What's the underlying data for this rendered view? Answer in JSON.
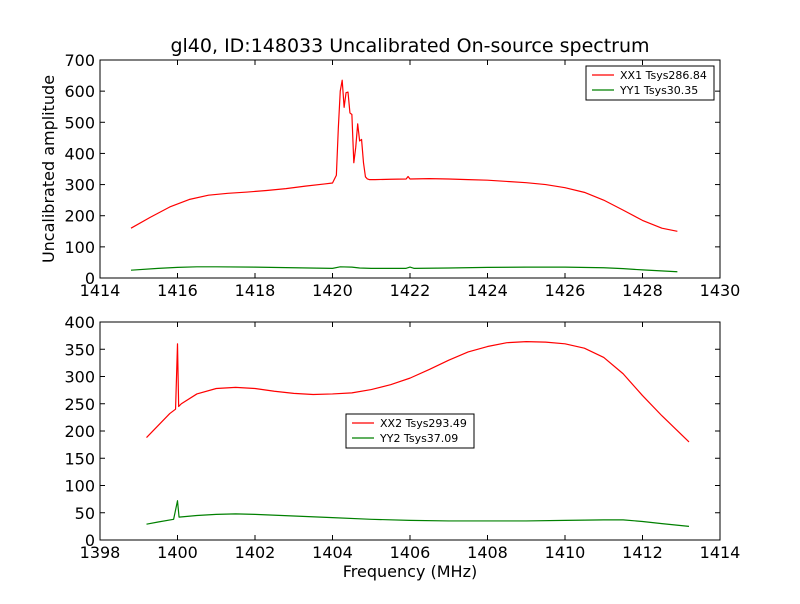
{
  "chart_data": [
    {
      "type": "line",
      "title": "gl40, ID:148033 Uncalibrated On-source spectrum",
      "xlabel": "",
      "ylabel": "Uncalibrated amplitude",
      "xlim": [
        1414,
        1430
      ],
      "ylim": [
        0,
        700
      ],
      "xticks": [
        1414,
        1416,
        1418,
        1420,
        1422,
        1424,
        1426,
        1428,
        1430
      ],
      "yticks": [
        0,
        100,
        200,
        300,
        400,
        500,
        600,
        700
      ],
      "legend_position": "top-right",
      "series": [
        {
          "name": "XX1 Tsys286.84",
          "color": "#ff0000",
          "x": [
            1414.8,
            1415.3,
            1415.8,
            1416.3,
            1416.8,
            1417.3,
            1417.8,
            1418.3,
            1418.8,
            1419.3,
            1419.8,
            1420.0,
            1420.1,
            1420.15,
            1420.2,
            1420.25,
            1420.3,
            1420.35,
            1420.4,
            1420.45,
            1420.5,
            1420.55,
            1420.6,
            1420.65,
            1420.7,
            1420.75,
            1420.8,
            1420.85,
            1420.9,
            1420.95,
            1421.0,
            1421.1,
            1421.5,
            1421.9,
            1421.95,
            1422.0,
            1422.5,
            1423.0,
            1423.5,
            1424.0,
            1424.5,
            1425.0,
            1425.5,
            1426.0,
            1426.5,
            1427.0,
            1427.5,
            1428.0,
            1428.5,
            1428.9
          ],
          "y": [
            160,
            195,
            228,
            252,
            266,
            272,
            276,
            281,
            287,
            295,
            302,
            305,
            330,
            480,
            600,
            635,
            548,
            595,
            597,
            530,
            525,
            370,
            420,
            495,
            440,
            445,
            370,
            325,
            318,
            316,
            316,
            316,
            317,
            318,
            326,
            318,
            319,
            318,
            316,
            314,
            310,
            306,
            300,
            290,
            275,
            250,
            218,
            185,
            160,
            150
          ]
        },
        {
          "name": "YY1 Tsys30.35",
          "color": "#008000",
          "x": [
            1414.8,
            1415.5,
            1416.0,
            1416.5,
            1417.0,
            1418.0,
            1419.0,
            1420.0,
            1420.2,
            1420.5,
            1420.7,
            1421.0,
            1421.5,
            1421.9,
            1422.0,
            1422.1,
            1423.0,
            1424.0,
            1425.0,
            1426.0,
            1427.0,
            1427.5,
            1428.0,
            1428.9
          ],
          "y": [
            25,
            31,
            34,
            36,
            36,
            35,
            33,
            31,
            36,
            35,
            32,
            31,
            31,
            31,
            35,
            31,
            32,
            34,
            35,
            35,
            33,
            30,
            26,
            20
          ]
        }
      ]
    },
    {
      "type": "line",
      "title": "",
      "xlabel": "Frequency (MHz)",
      "ylabel": "",
      "xlim": [
        1398,
        1414
      ],
      "ylim": [
        0,
        400
      ],
      "xticks": [
        1398,
        1400,
        1402,
        1404,
        1406,
        1408,
        1410,
        1412,
        1414
      ],
      "yticks": [
        0,
        50,
        100,
        150,
        200,
        250,
        300,
        350,
        400
      ],
      "legend_position": "center",
      "series": [
        {
          "name": "XX2 Tsys293.49",
          "color": "#ff0000",
          "x": [
            1399.2,
            1399.5,
            1399.8,
            1399.95,
            1400.0,
            1400.03,
            1400.1,
            1400.5,
            1401.0,
            1401.5,
            1402.0,
            1402.5,
            1403.0,
            1403.5,
            1404.0,
            1404.5,
            1405.0,
            1405.5,
            1406.0,
            1406.5,
            1407.0,
            1407.5,
            1408.0,
            1408.5,
            1409.0,
            1409.5,
            1410.0,
            1410.5,
            1411.0,
            1411.5,
            1412.0,
            1412.5,
            1413.2
          ],
          "y": [
            188,
            210,
            232,
            240,
            360,
            245,
            250,
            268,
            278,
            280,
            278,
            273,
            269,
            267,
            268,
            270,
            276,
            285,
            297,
            313,
            330,
            345,
            355,
            362,
            364,
            363,
            360,
            352,
            335,
            305,
            265,
            228,
            180
          ]
        },
        {
          "name": "YY2 Tsys37.09",
          "color": "#008000",
          "x": [
            1399.2,
            1399.5,
            1399.9,
            1400.0,
            1400.04,
            1400.5,
            1401.0,
            1401.5,
            1402.0,
            1403.0,
            1404.0,
            1405.0,
            1406.0,
            1407.0,
            1408.0,
            1409.0,
            1410.0,
            1411.0,
            1411.5,
            1412.0,
            1412.5,
            1413.2
          ],
          "y": [
            29,
            33,
            38,
            72,
            42,
            45,
            47,
            48,
            47,
            44,
            41,
            38,
            36,
            35,
            35,
            35,
            36,
            37,
            37,
            34,
            30,
            25
          ]
        }
      ]
    }
  ]
}
